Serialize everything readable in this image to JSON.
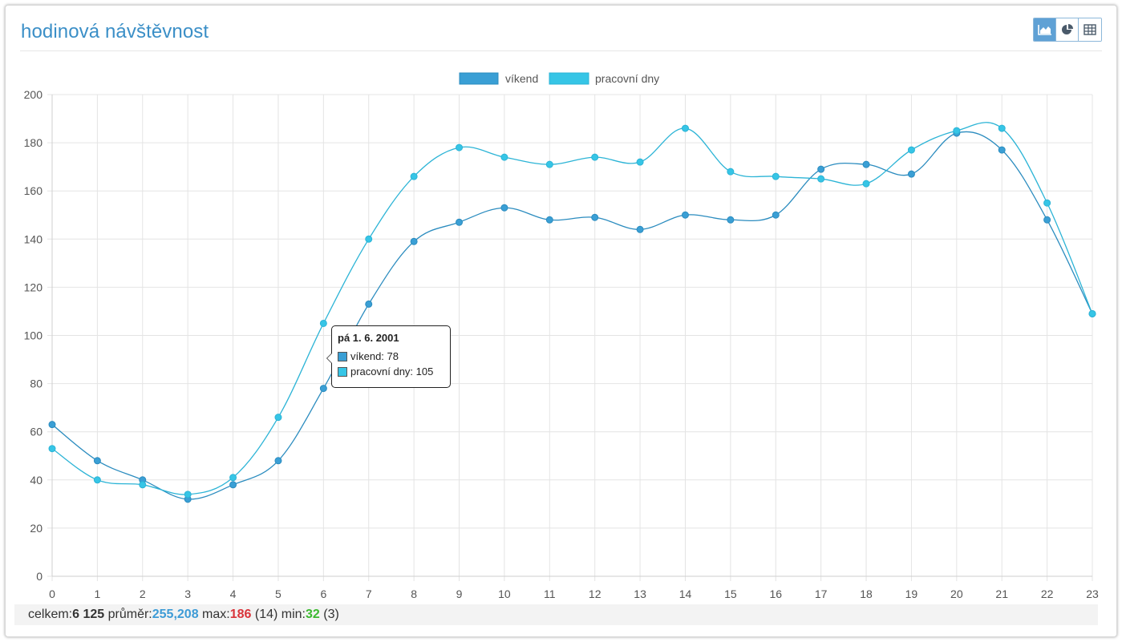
{
  "panel": {
    "title": "hodinová návštěvnost"
  },
  "view_buttons": [
    {
      "icon": "area-chart-icon",
      "active": true
    },
    {
      "icon": "pie-chart-icon",
      "active": false
    },
    {
      "icon": "table-icon",
      "active": false
    }
  ],
  "chart_data": {
    "type": "line",
    "title": "",
    "xlabel": "",
    "ylabel": "",
    "categories": [
      "0",
      "1",
      "2",
      "3",
      "4",
      "5",
      "6",
      "7",
      "8",
      "9",
      "10",
      "11",
      "12",
      "13",
      "14",
      "15",
      "16",
      "17",
      "18",
      "19",
      "20",
      "21",
      "22",
      "23"
    ],
    "ylim": [
      0,
      200
    ],
    "yticks": [
      0,
      20,
      40,
      60,
      80,
      100,
      120,
      140,
      160,
      180,
      200
    ],
    "grid": true,
    "legend_position": "top-center",
    "series": [
      {
        "name": "víkend",
        "color": "#3a9fd5",
        "values": [
          63,
          48,
          40,
          32,
          38,
          48,
          78,
          113,
          139,
          147,
          153,
          148,
          149,
          144,
          150,
          148,
          150,
          169,
          171,
          167,
          184,
          177,
          148,
          109
        ]
      },
      {
        "name": "pracovní dny",
        "color": "#36c5e6",
        "values": [
          53,
          40,
          38,
          34,
          41,
          66,
          105,
          140,
          166,
          178,
          174,
          171,
          174,
          172,
          186,
          168,
          166,
          165,
          163,
          177,
          185,
          186,
          155,
          109
        ]
      }
    ]
  },
  "tooltip": {
    "title": "pá 1. 6. 2001",
    "rows": [
      {
        "label": "víkend: 78",
        "color": "#3a9fd5"
      },
      {
        "label": "pracovní dny: 105",
        "color": "#36c5e6"
      }
    ]
  },
  "footer": {
    "total_label": "celkem:",
    "total_value": "6 125",
    "avg_label": " průměr:",
    "avg_value": "255,208",
    "max_label": " max:",
    "max_value": "186",
    "max_hour": " (14)",
    "min_label": " min:",
    "min_value": "32",
    "min_hour": " (3)"
  }
}
